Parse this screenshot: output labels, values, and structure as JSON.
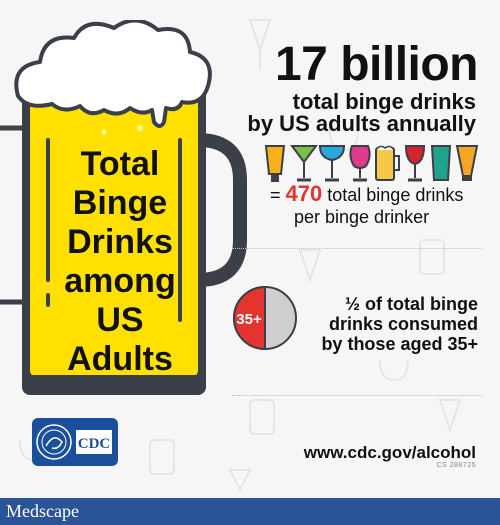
{
  "headline": {
    "number": "17 billion",
    "line1": "total binge drinks",
    "line2": "by US adults annually"
  },
  "mug": {
    "lines": [
      "Total",
      "Binge",
      "Drinks",
      "among",
      "US",
      "Adults"
    ],
    "beer_color": "#ffe000",
    "foam_color": "#ffffff",
    "outline_color": "#3a3f4a"
  },
  "drink_icons": [
    "beer-glass-icon",
    "martini-glass-icon",
    "margarita-glass-icon",
    "hurricane-glass-icon",
    "beer-mug-icon",
    "wine-glass-icon",
    "highball-glass-icon",
    "pilsner-glass-icon"
  ],
  "ratio": {
    "equals": "=",
    "number": "470",
    "text1": "total binge drinks",
    "text2": "per binge drinker"
  },
  "age_stat": {
    "pie_label": "35+",
    "line1": "½ of total binge",
    "line2": "drinks consumed",
    "line3": "by those aged 35+",
    "red": "#e3342f",
    "grey": "#cfcfcf"
  },
  "cdc_logo_text": "CDC",
  "url": "www.cdc.gov/alcohol",
  "code": "CS 288725",
  "footer": {
    "brand": "Medscape",
    "color": "#2b5497"
  }
}
